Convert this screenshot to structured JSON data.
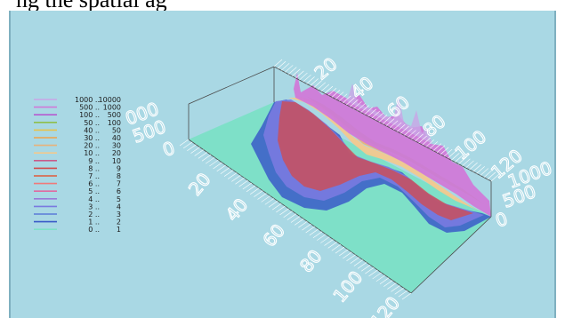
{
  "caption": "ng the spatial ag",
  "chart_data": {
    "type": "area",
    "title": "",
    "legend": {
      "placement": "left",
      "entries": [
        {
          "low": "1000 ..",
          "high": "10000",
          "color": "#c9a6e6"
        },
        {
          "low": "500 ..",
          "high": "1000",
          "color": "#d07ad8"
        },
        {
          "low": "100 ..",
          "high": "500",
          "color": "#b65ad0"
        },
        {
          "low": "50 ..",
          "high": "100",
          "color": "#8fbf4a"
        },
        {
          "low": "40 ..",
          "high": "50",
          "color": "#e8c24a"
        },
        {
          "low": "30 ..",
          "high": "40",
          "color": "#f0a24a"
        },
        {
          "low": "20 ..",
          "high": "30",
          "color": "#e8b27a"
        },
        {
          "low": "10 ..",
          "high": "20",
          "color": "#f2c98e"
        },
        {
          "low": "9 ..",
          "high": "10",
          "color": "#c85a8a"
        },
        {
          "low": "8 ..",
          "high": "9",
          "color": "#d44a4a"
        },
        {
          "low": "7 ..",
          "high": "8",
          "color": "#e05a3a"
        },
        {
          "low": "6 ..",
          "high": "7",
          "color": "#f07a7a"
        },
        {
          "low": "5 ..",
          "high": "6",
          "color": "#e06aa0"
        },
        {
          "low": "4 ..",
          "high": "5",
          "color": "#9a7ad8"
        },
        {
          "low": "3 ..",
          "high": "4",
          "color": "#7a7ae0"
        },
        {
          "low": "2 ..",
          "high": "3",
          "color": "#5a7ad8"
        },
        {
          "low": "1 ..",
          "high": "2",
          "color": "#3a5ac8"
        },
        {
          "low": "0 ..",
          "high": "1",
          "color": "#7ee0c8"
        }
      ]
    },
    "front_axis_ticks": [
      "20",
      "40",
      "60",
      "80",
      "100",
      "120"
    ],
    "back_axis_ticks": [
      "20",
      "40",
      "60",
      "80",
      "100",
      "120"
    ],
    "left_z_ticks": [
      "0",
      "500",
      "000"
    ],
    "right_z_ticks": [
      "0",
      "500",
      "1000"
    ],
    "ranges": {
      "x": [
        0,
        120
      ],
      "y": [
        0,
        120
      ],
      "z": [
        0,
        1000
      ]
    },
    "base_color": "#7ee0c8",
    "grid": false
  }
}
